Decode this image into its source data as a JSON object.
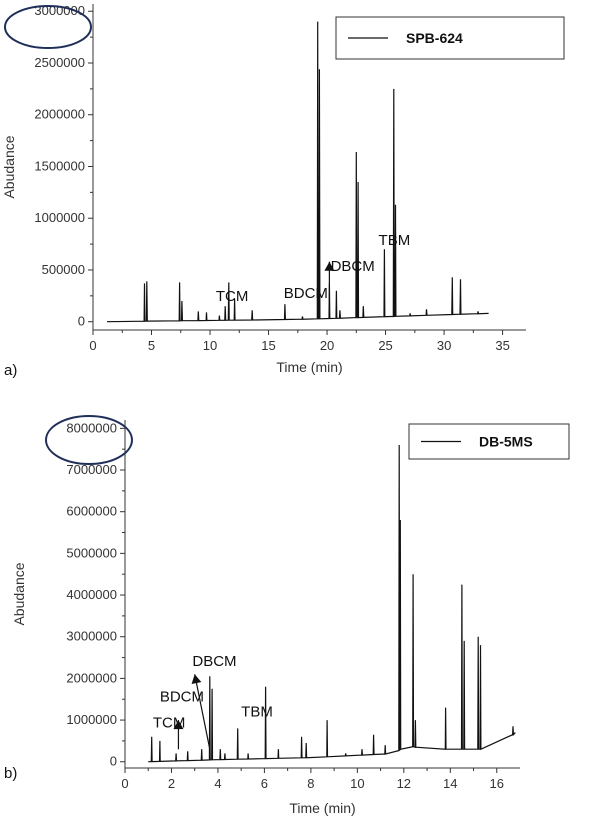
{
  "chart_data": [
    {
      "type": "line",
      "panel_label": "a)",
      "xlabel": "Time (min)",
      "ylabel": "Abudance",
      "xlim": [
        0,
        37
      ],
      "ylim": [
        -80000,
        3070000
      ],
      "x_ticks": [
        "0",
        "5",
        "10",
        "15",
        "20",
        "25",
        "30",
        "35"
      ],
      "x_tick_values": [
        0,
        5,
        10,
        15,
        20,
        25,
        30,
        35
      ],
      "y_ticks": [
        "0",
        "500000",
        "1000000",
        "1500000",
        "2000000",
        "2500000",
        "3000000"
      ],
      "y_tick_values": [
        0,
        500000,
        1000000,
        1500000,
        2000000,
        2500000,
        3000000
      ],
      "circled_tick": "3000000",
      "legend": "top-right",
      "series": [
        {
          "name": "SPB-624",
          "color": "#111111",
          "baseline": [
            [
              1.2,
              0
            ],
            [
              4.0,
              5000
            ],
            [
              8.0,
              10000
            ],
            [
              12.0,
              15000
            ],
            [
              16.0,
              20000
            ],
            [
              20.0,
              30000
            ],
            [
              24.0,
              45000
            ],
            [
              28.0,
              60000
            ],
            [
              32.0,
              75000
            ],
            [
              33.8,
              80000
            ]
          ],
          "peaks": [
            [
              4.4,
              370000
            ],
            [
              4.6,
              390000
            ],
            [
              7.4,
              380000
            ],
            [
              7.6,
              200000
            ],
            [
              9.0,
              100000
            ],
            [
              9.7,
              90000
            ],
            [
              10.8,
              60000
            ],
            [
              11.3,
              150000
            ],
            [
              11.6,
              380000
            ],
            [
              12.1,
              220000
            ],
            [
              13.6,
              110000
            ],
            [
              16.4,
              170000
            ],
            [
              17.9,
              50000
            ],
            [
              19.2,
              2900000
            ],
            [
              19.35,
              2440000
            ],
            [
              20.2,
              370000
            ],
            [
              20.8,
              300000
            ],
            [
              21.1,
              110000
            ],
            [
              22.5,
              1640000
            ],
            [
              22.65,
              1350000
            ],
            [
              23.1,
              150000
            ],
            [
              24.9,
              700000
            ],
            [
              25.7,
              2250000
            ],
            [
              25.85,
              1130000
            ],
            [
              27.1,
              80000
            ],
            [
              28.5,
              120000
            ],
            [
              30.7,
              430000
            ],
            [
              31.4,
              410000
            ],
            [
              32.9,
              100000
            ]
          ]
        }
      ],
      "annotations": [
        {
          "text": "TCM",
          "x": 10.5,
          "y": 200000,
          "arrow": false
        },
        {
          "text": "BDCM",
          "x": 16.3,
          "y": 230000,
          "arrow": false
        },
        {
          "text": "DBCM",
          "x": 20.3,
          "y": 490000,
          "arrow": true,
          "arrow_from": [
            20.2,
            210000
          ],
          "arrow_to": [
            20.2,
            580000
          ]
        },
        {
          "text": "TBM",
          "x": 24.4,
          "y": 740000,
          "arrow": false
        }
      ]
    },
    {
      "type": "line",
      "panel_label": "b)",
      "xlabel": "Time (min)",
      "ylabel": "Abudance",
      "xlim": [
        0,
        17
      ],
      "ylim": [
        -150000,
        8200000
      ],
      "x_ticks": [
        "0",
        "2",
        "4",
        "6",
        "8",
        "10",
        "12",
        "14",
        "16"
      ],
      "x_tick_values": [
        0,
        2,
        4,
        6,
        8,
        10,
        12,
        14,
        16
      ],
      "y_ticks": [
        "0",
        "1000000",
        "2000000",
        "3000000",
        "4000000",
        "5000000",
        "6000000",
        "7000000",
        "8000000"
      ],
      "y_tick_values": [
        0,
        1000000,
        2000000,
        3000000,
        4000000,
        5000000,
        6000000,
        7000000,
        8000000
      ],
      "circled_tick": "8000000",
      "legend": "top-right",
      "series": [
        {
          "name": "DB-5MS",
          "color": "#111111",
          "baseline": [
            [
              1.0,
              0
            ],
            [
              4.0,
              50000
            ],
            [
              8.0,
              100000
            ],
            [
              11.7,
              200000
            ],
            [
              12.0,
              400000
            ],
            [
              13.0,
              300000
            ],
            [
              16.0,
              300000
            ],
            [
              16.8,
              700000
            ]
          ],
          "peaks": [
            [
              1.15,
              600000
            ],
            [
              1.5,
              500000
            ],
            [
              2.2,
              200000
            ],
            [
              2.7,
              250000
            ],
            [
              3.3,
              300000
            ],
            [
              3.65,
              2050000
            ],
            [
              3.75,
              1750000
            ],
            [
              4.1,
              300000
            ],
            [
              4.3,
              200000
            ],
            [
              4.85,
              800000
            ],
            [
              5.3,
              200000
            ],
            [
              6.05,
              1800000
            ],
            [
              6.6,
              300000
            ],
            [
              7.6,
              600000
            ],
            [
              7.8,
              450000
            ],
            [
              8.7,
              1000000
            ],
            [
              9.5,
              200000
            ],
            [
              10.2,
              300000
            ],
            [
              10.7,
              650000
            ],
            [
              11.2,
              400000
            ],
            [
              11.8,
              7600000
            ],
            [
              11.85,
              5800000
            ],
            [
              12.4,
              4500000
            ],
            [
              12.5,
              1000000
            ],
            [
              13.8,
              1300000
            ],
            [
              14.5,
              4250000
            ],
            [
              14.6,
              2900000
            ],
            [
              15.2,
              3000000
            ],
            [
              15.3,
              2800000
            ],
            [
              16.7,
              850000
            ]
          ]
        }
      ],
      "annotations": [
        {
          "text": "TCM",
          "x": 1.2,
          "y": 820000,
          "arrow": false
        },
        {
          "text": "BDCM",
          "x": 1.5,
          "y": 1450000,
          "arrow": true,
          "arrow_from": [
            2.3,
            300000
          ],
          "arrow_to": [
            2.3,
            1000000
          ]
        },
        {
          "text": "DBCM",
          "x": 2.9,
          "y": 2300000,
          "arrow": true,
          "arrow_from": [
            3.65,
            300000
          ],
          "arrow_to": [
            3.0,
            2100000
          ]
        },
        {
          "text": "TBM",
          "x": 5.0,
          "y": 1080000,
          "arrow": false
        }
      ]
    }
  ]
}
